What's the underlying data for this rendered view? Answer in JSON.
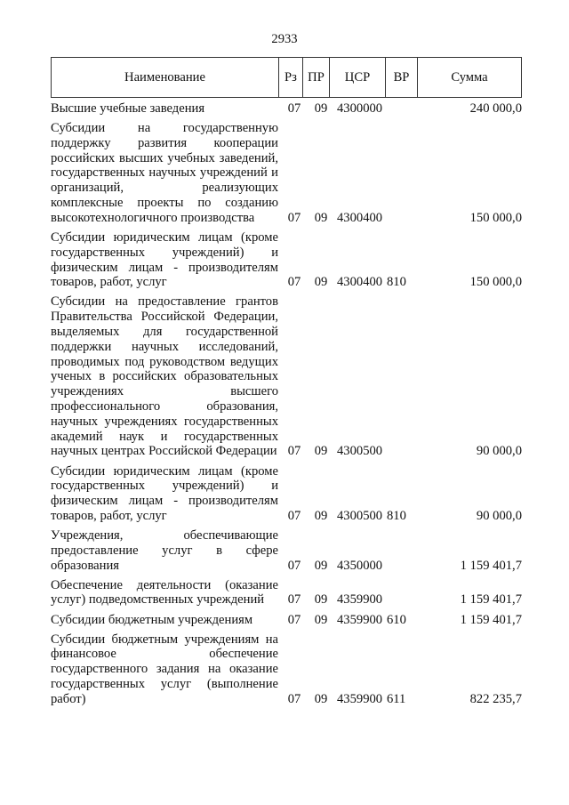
{
  "page_number": "2933",
  "headers": {
    "name": "Наименование",
    "rz": "Рз",
    "pr": "ПР",
    "csr": "ЦСР",
    "vr": "ВР",
    "sum": "Сумма"
  },
  "rows": [
    {
      "name": "Высшие учебные заведения",
      "rz": "07",
      "pr": "09",
      "csr": "4300000",
      "vr": "",
      "sum": "240 000,0"
    },
    {
      "name": "Субсидии на государственную поддержку развития кооперации российских высших учебных заведений, государственных научных учреждений и организаций, реализующих комплексные проекты по созданию высокотехнологичного производства",
      "rz": "07",
      "pr": "09",
      "csr": "4300400",
      "vr": "",
      "sum": "150 000,0"
    },
    {
      "name": "Субсидии юридическим лицам (кроме государственных учреждений) и физическим лицам - производителям товаров, работ, услуг",
      "rz": "07",
      "pr": "09",
      "csr": "4300400",
      "vr": "810",
      "sum": "150 000,0"
    },
    {
      "name": "Субсидии на предоставление грантов Правительства Российской Федерации, выделяемых для государственной поддержки научных исследований, проводимых под руководством ведущих ученых в российских образовательных учреждениях высшего профессионального образования, научных учреждениях государственных академий наук и государственных научных центрах Российской Федерации",
      "rz": "07",
      "pr": "09",
      "csr": "4300500",
      "vr": "",
      "sum": "90 000,0"
    },
    {
      "name": "Субсидии юридическим лицам (кроме государственных учреждений) и физическим лицам - производителям товаров, работ, услуг",
      "rz": "07",
      "pr": "09",
      "csr": "4300500",
      "vr": "810",
      "sum": "90 000,0"
    },
    {
      "name": "Учреждения, обеспечивающие предоставление услуг в сфере образования",
      "rz": "07",
      "pr": "09",
      "csr": "4350000",
      "vr": "",
      "sum": "1 159 401,7"
    },
    {
      "name": "Обеспечение деятельности (оказание услуг) подведомственных учреждений",
      "rz": "07",
      "pr": "09",
      "csr": "4359900",
      "vr": "",
      "sum": "1 159 401,7"
    },
    {
      "name": "Субсидии бюджетным учреждениям",
      "rz": "07",
      "pr": "09",
      "csr": "4359900",
      "vr": "610",
      "sum": "1 159 401,7"
    },
    {
      "name": "Субсидии бюджетным учреждениям на финансовое обеспечение государственного задания на оказание государственных услуг (выполнение работ)",
      "rz": "07",
      "pr": "09",
      "csr": "4359900",
      "vr": "611",
      "sum": "822 235,7"
    }
  ]
}
